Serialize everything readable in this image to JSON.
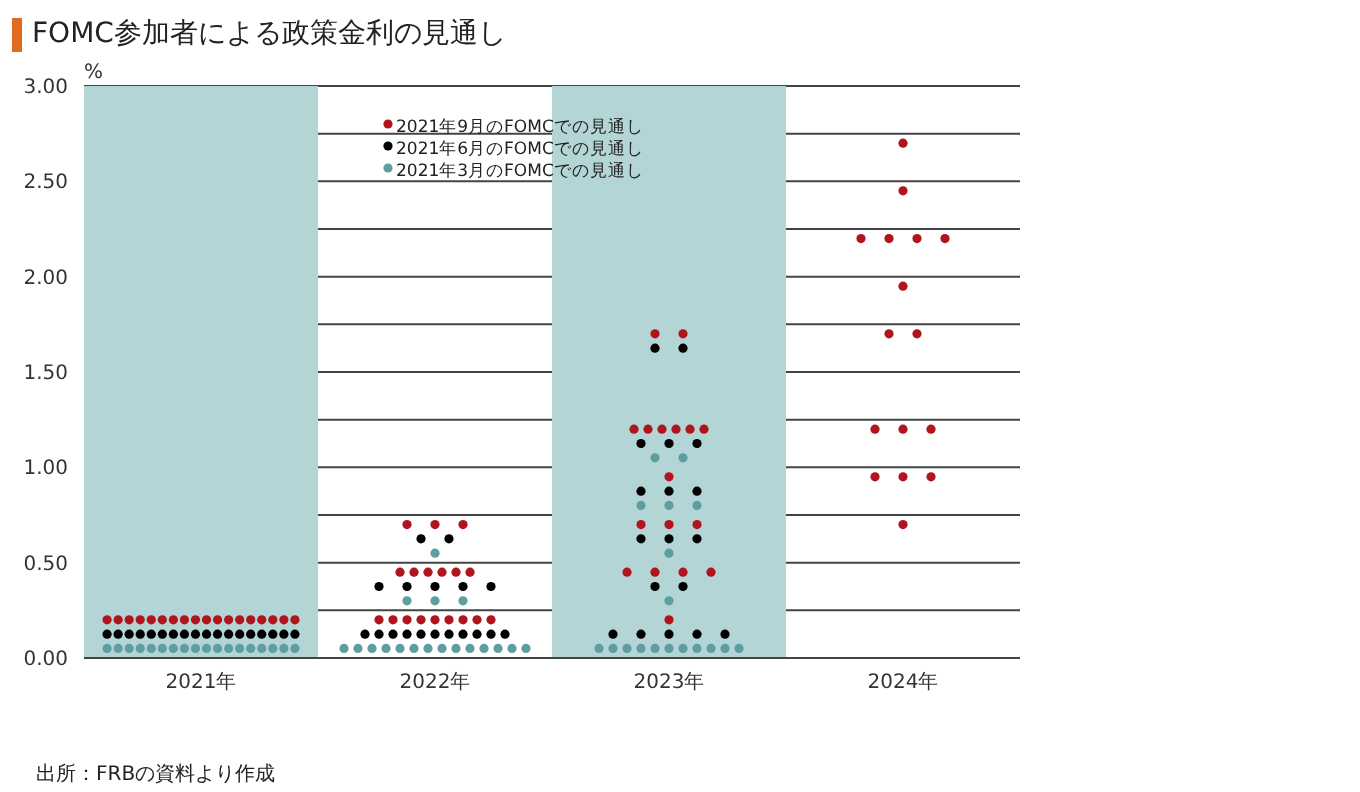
{
  "chart_data": {
    "type": "scatter",
    "title": "FOMC参加者による政策金利の見通し",
    "ylabel": "%",
    "categories": [
      "2021年",
      "2022年",
      "2023年",
      "2024年"
    ],
    "ylim": [
      0,
      3
    ],
    "yticks": [
      {
        "value": 0,
        "label": "0.00"
      },
      {
        "value": 0.25,
        "label": null
      },
      {
        "value": 0.5,
        "label": "0.50"
      },
      {
        "value": 0.75,
        "label": null
      },
      {
        "value": 1,
        "label": "1.00"
      },
      {
        "value": 1.25,
        "label": null
      },
      {
        "value": 1.5,
        "label": "1.50"
      },
      {
        "value": 1.75,
        "label": null
      },
      {
        "value": 2,
        "label": "2.00"
      },
      {
        "value": 2.25,
        "label": null
      },
      {
        "value": 2.5,
        "label": "2.50"
      },
      {
        "value": 2.75,
        "label": null
      },
      {
        "value": 3,
        "label": "3.00"
      }
    ],
    "grid": "y",
    "legend": "top",
    "marker": "circle",
    "bands": [
      {
        "axis": "x",
        "from": "2021年",
        "to": "2021年",
        "color": "#b4d5d6"
      },
      {
        "axis": "x",
        "from": "2023年",
        "to": "2023年",
        "color": "#b4d5d6"
      }
    ],
    "series": [
      {
        "name": "2021年9月のFOMCでの見通し",
        "color": "#b0141c",
        "x": [
          "2021年",
          "2021年",
          "2021年",
          "2021年",
          "2021年",
          "2021年",
          "2021年",
          "2021年",
          "2021年",
          "2021年",
          "2021年",
          "2021年",
          "2021年",
          "2021年",
          "2021年",
          "2021年",
          "2021年",
          "2021年",
          "2022年",
          "2022年",
          "2022年",
          "2022年",
          "2022年",
          "2022年",
          "2022年",
          "2022年",
          "2022年",
          "2022年",
          "2022年",
          "2022年",
          "2022年",
          "2022年",
          "2022年",
          "2022年",
          "2022年",
          "2022年",
          "2023年",
          "2023年",
          "2023年",
          "2023年",
          "2023年",
          "2023年",
          "2023年",
          "2023年",
          "2023年",
          "2023年",
          "2023年",
          "2023年",
          "2023年",
          "2023年",
          "2023年",
          "2023年",
          "2023年",
          "2024年",
          "2024年",
          "2024年",
          "2024年",
          "2024年",
          "2024年",
          "2024年",
          "2024年",
          "2024年",
          "2024年",
          "2024年",
          "2024年",
          "2024年",
          "2024年",
          "2024年",
          "2024年"
        ],
        "values": [
          0.2,
          0.2,
          0.2,
          0.2,
          0.2,
          0.2,
          0.2,
          0.2,
          0.2,
          0.2,
          0.2,
          0.2,
          0.2,
          0.2,
          0.2,
          0.2,
          0.2,
          0.2,
          0.2,
          0.2,
          0.2,
          0.2,
          0.2,
          0.2,
          0.2,
          0.2,
          0.2,
          0.45,
          0.45,
          0.45,
          0.45,
          0.45,
          0.45,
          0.7,
          0.7,
          0.7,
          0.2,
          0.45,
          0.45,
          0.45,
          0.45,
          0.7,
          0.7,
          0.7,
          0.95,
          1.2,
          1.2,
          1.2,
          1.2,
          1.2,
          1.2,
          1.7,
          1.7,
          0.7,
          0.95,
          0.95,
          0.95,
          1.2,
          1.2,
          1.2,
          1.7,
          1.7,
          1.95,
          2.2,
          2.2,
          2.2,
          2.2,
          2.45,
          2.7
        ]
      },
      {
        "name": "2021年6月のFOMCでの見通し",
        "color": "#000000",
        "x": [
          "2021年",
          "2021年",
          "2021年",
          "2021年",
          "2021年",
          "2021年",
          "2021年",
          "2021年",
          "2021年",
          "2021年",
          "2021年",
          "2021年",
          "2021年",
          "2021年",
          "2021年",
          "2021年",
          "2021年",
          "2021年",
          "2022年",
          "2022年",
          "2022年",
          "2022年",
          "2022年",
          "2022年",
          "2022年",
          "2022年",
          "2022年",
          "2022年",
          "2022年",
          "2022年",
          "2022年",
          "2022年",
          "2022年",
          "2022年",
          "2022年",
          "2022年",
          "2023年",
          "2023年",
          "2023年",
          "2023年",
          "2023年",
          "2023年",
          "2023年",
          "2023年",
          "2023年",
          "2023年",
          "2023年",
          "2023年",
          "2023年",
          "2023年",
          "2023年",
          "2023年",
          "2023年",
          "2023年"
        ],
        "values": [
          0.125,
          0.125,
          0.125,
          0.125,
          0.125,
          0.125,
          0.125,
          0.125,
          0.125,
          0.125,
          0.125,
          0.125,
          0.125,
          0.125,
          0.125,
          0.125,
          0.125,
          0.125,
          0.125,
          0.125,
          0.125,
          0.125,
          0.125,
          0.125,
          0.125,
          0.125,
          0.125,
          0.125,
          0.125,
          0.375,
          0.375,
          0.375,
          0.375,
          0.375,
          0.625,
          0.625,
          0.125,
          0.125,
          0.125,
          0.125,
          0.125,
          0.375,
          0.375,
          0.625,
          0.625,
          0.625,
          0.875,
          0.875,
          0.875,
          1.125,
          1.125,
          1.125,
          1.625,
          1.625
        ]
      },
      {
        "name": "2021年3月のFOMCでの見通し",
        "color": "#5e9ea0",
        "x": [
          "2021年",
          "2021年",
          "2021年",
          "2021年",
          "2021年",
          "2021年",
          "2021年",
          "2021年",
          "2021年",
          "2021年",
          "2021年",
          "2021年",
          "2021年",
          "2021年",
          "2021年",
          "2021年",
          "2021年",
          "2021年",
          "2022年",
          "2022年",
          "2022年",
          "2022年",
          "2022年",
          "2022年",
          "2022年",
          "2022年",
          "2022年",
          "2022年",
          "2022年",
          "2022年",
          "2022年",
          "2022年",
          "2022年",
          "2022年",
          "2022年",
          "2022年",
          "2023年",
          "2023年",
          "2023年",
          "2023年",
          "2023年",
          "2023年",
          "2023年",
          "2023年",
          "2023年",
          "2023年",
          "2023年",
          "2023年",
          "2023年",
          "2023年",
          "2023年",
          "2023年",
          "2023年",
          "2023年"
        ],
        "values": [
          0.05,
          0.05,
          0.05,
          0.05,
          0.05,
          0.05,
          0.05,
          0.05,
          0.05,
          0.05,
          0.05,
          0.05,
          0.05,
          0.05,
          0.05,
          0.05,
          0.05,
          0.05,
          0.05,
          0.05,
          0.05,
          0.05,
          0.05,
          0.05,
          0.05,
          0.05,
          0.05,
          0.05,
          0.05,
          0.05,
          0.05,
          0.05,
          0.3,
          0.3,
          0.3,
          0.55,
          0.05,
          0.05,
          0.05,
          0.05,
          0.05,
          0.05,
          0.05,
          0.05,
          0.05,
          0.05,
          0.05,
          0.3,
          0.55,
          0.8,
          0.8,
          0.8,
          1.05,
          1.05
        ]
      }
    ],
    "annotations": [
      "出所：FRBの資料より作成"
    ]
  }
}
